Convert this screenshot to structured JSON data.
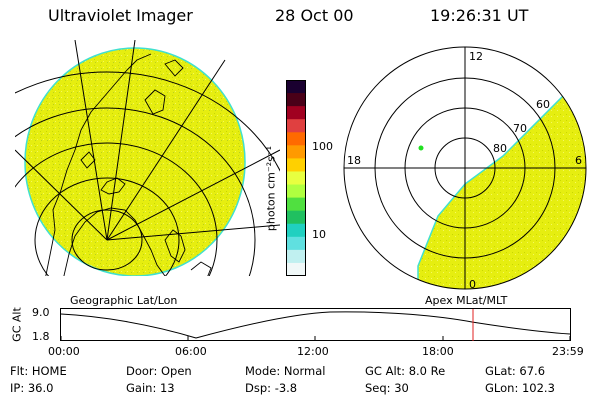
{
  "header": {
    "instrument": "Ultraviolet Imager",
    "date": "28 Oct 00",
    "time": "19:26:31 UT"
  },
  "left_panel": {
    "caption": "Geographic Lat/Lon"
  },
  "right_panel": {
    "caption": "Apex MLat/MLT",
    "mlt_labels": {
      "top": "12",
      "left": "18",
      "right": "6",
      "bottom": "0"
    },
    "lat_labels": [
      "60",
      "70",
      "80"
    ]
  },
  "colorbar": {
    "unit_label": "photon cm⁻²s⁻¹",
    "ticks": [
      "100",
      "10"
    ],
    "colors": [
      "#1a0030",
      "#4a0018",
      "#a00020",
      "#e04040",
      "#ff6a00",
      "#ff9a00",
      "#ffd000",
      "#e8ff40",
      "#b0ff40",
      "#50e040",
      "#20c060",
      "#20d0c0",
      "#60e0e0",
      "#c0f0f0",
      "#f0f8f8"
    ]
  },
  "altitude_plot": {
    "ylabel": "GC Alt",
    "yticks": [
      "9.0",
      "1.8"
    ],
    "xticks": [
      "00:00",
      "06:00",
      "12:00",
      "18:00",
      "23:59"
    ],
    "marker_color": "#e02020"
  },
  "status": [
    [
      {
        "label": "Flt:",
        "value": "HOME"
      },
      {
        "label": "Door:",
        "value": "Open"
      },
      {
        "label": "Mode:",
        "value": "Normal"
      },
      {
        "label": "GC Alt:",
        "value": "8.0 Re"
      },
      {
        "label": "GLat:",
        "value": "67.6"
      }
    ],
    [
      {
        "label": "IP:",
        "value": "36.0"
      },
      {
        "label": "Gain:",
        "value": "13"
      },
      {
        "label": "Dsp:",
        "value": "-3.8"
      },
      {
        "label": "Seq:",
        "value": "30"
      },
      {
        "label": "GLon:",
        "value": "102.3"
      }
    ]
  ],
  "colors": {
    "aurora_fill": "#e8f000",
    "aurora_edge": "#40e0d0",
    "line": "#000000"
  }
}
